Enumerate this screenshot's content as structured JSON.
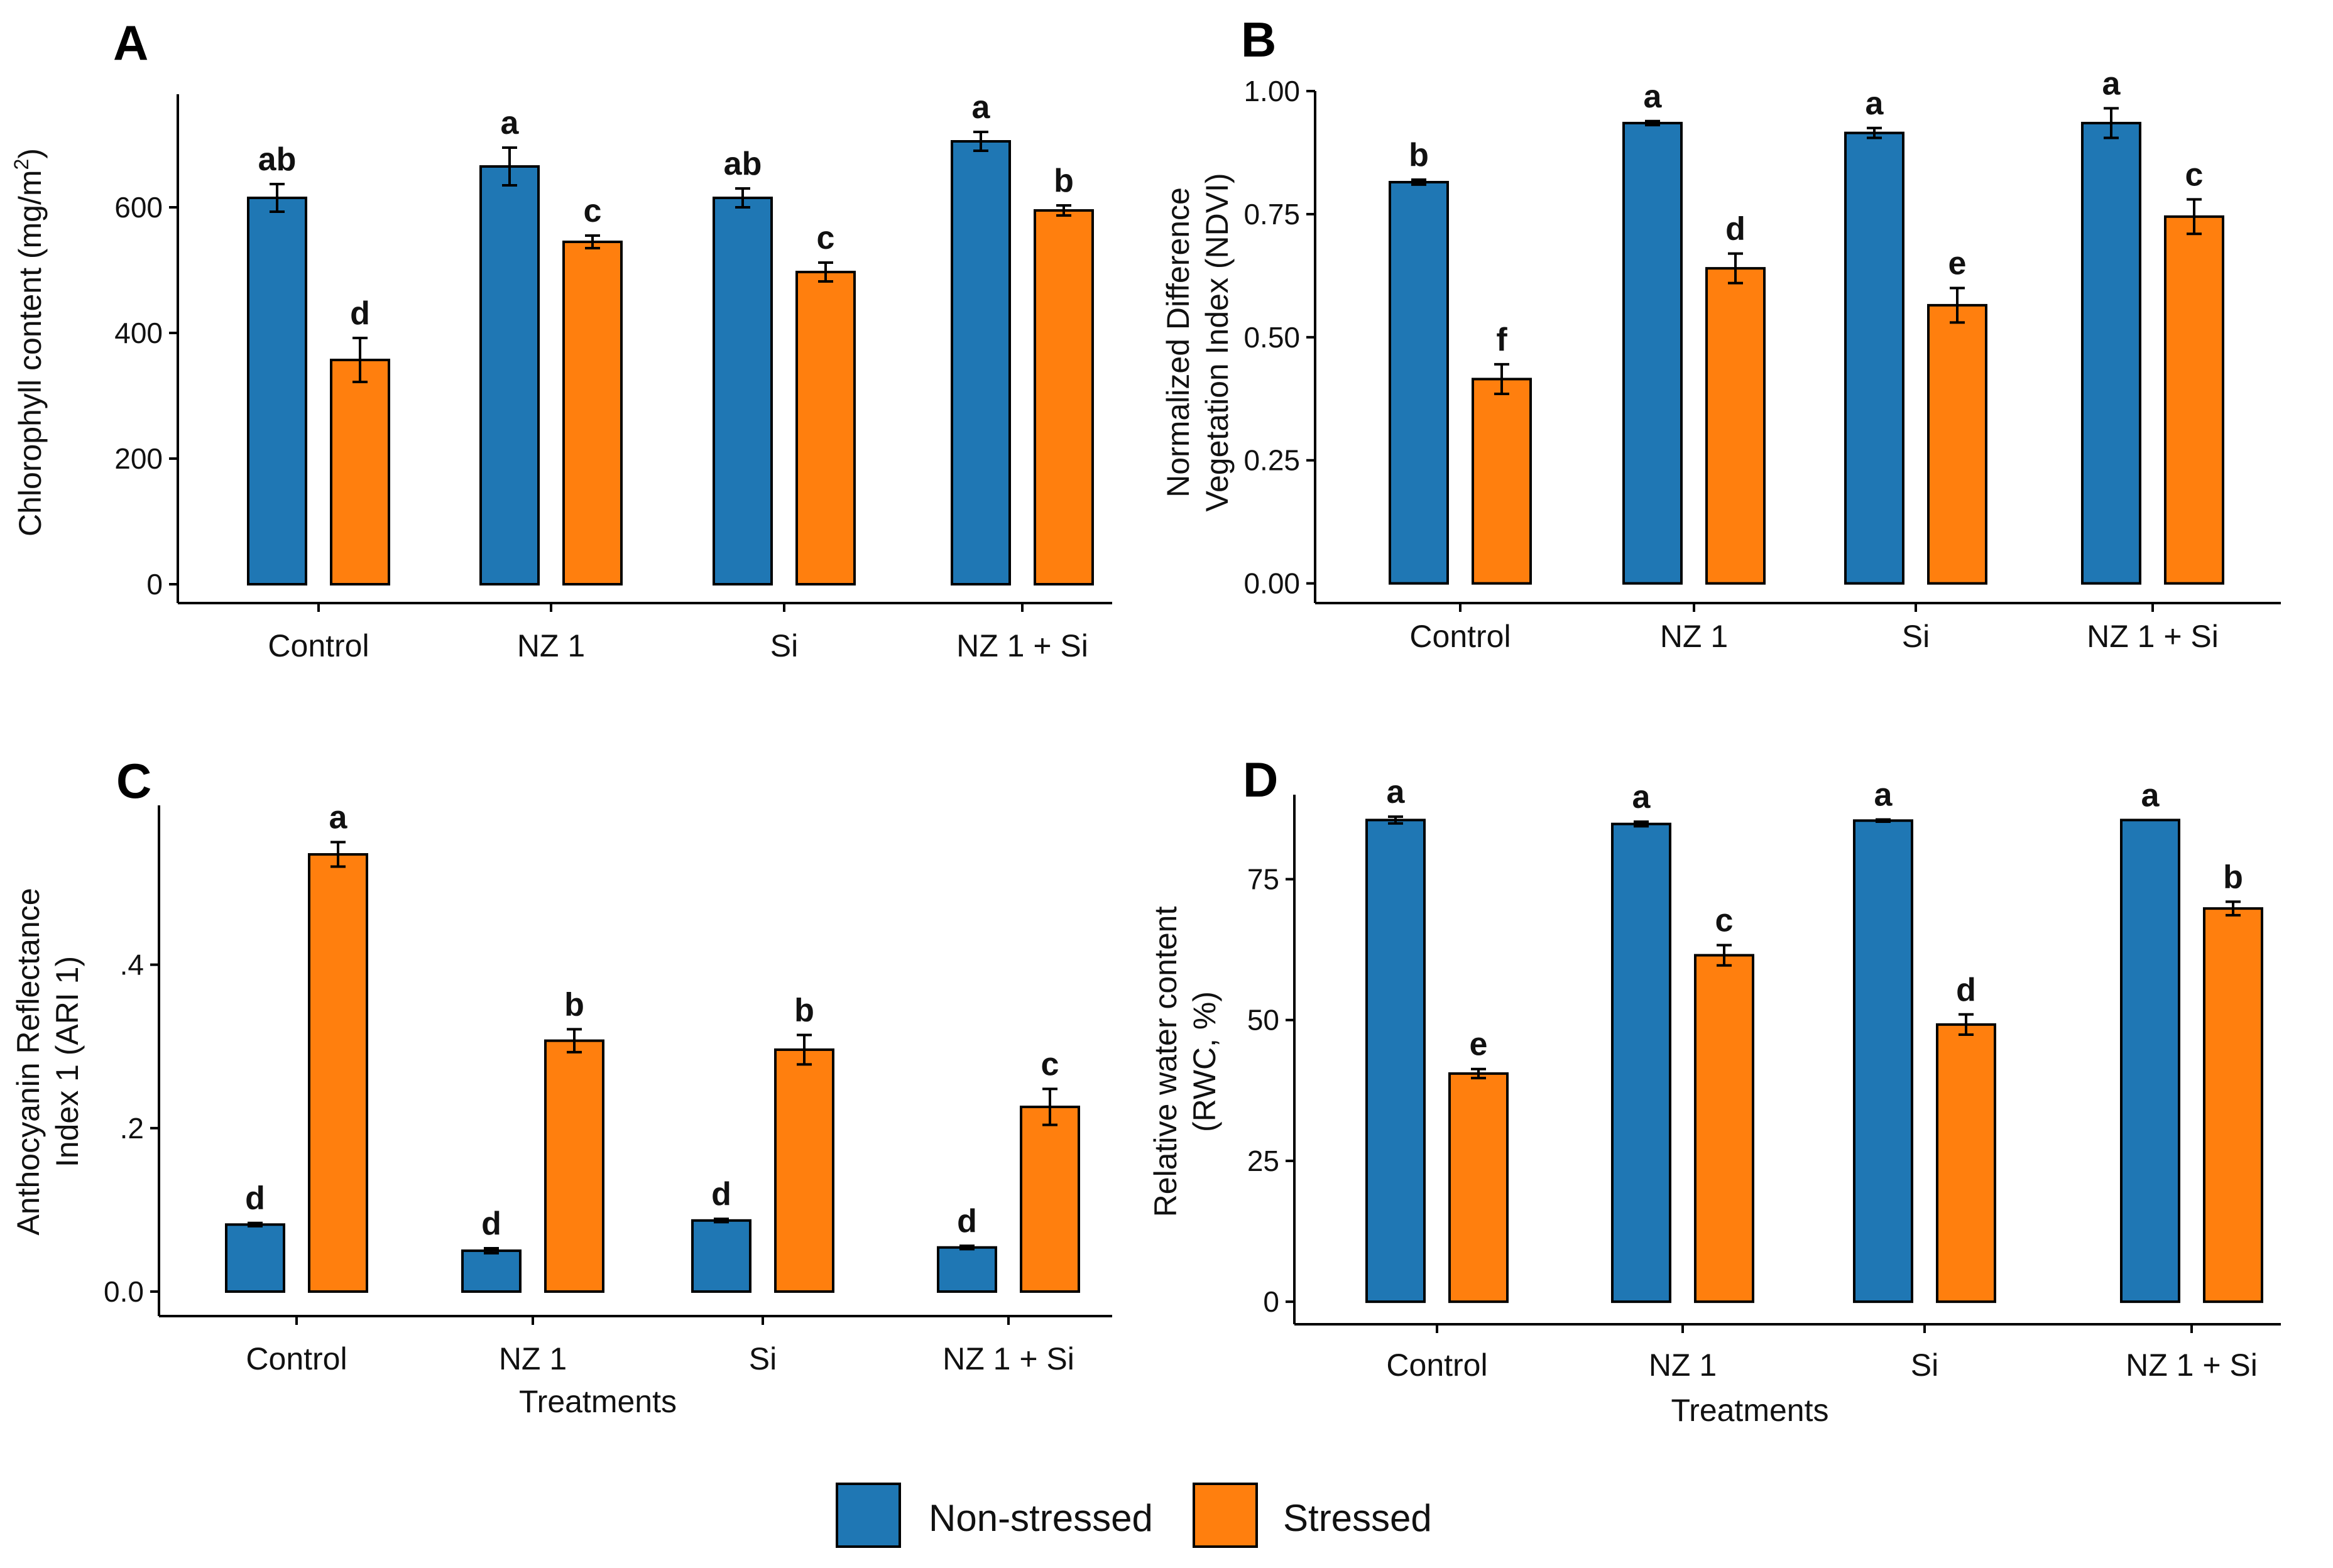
{
  "colors": {
    "non_stressed": "#1f77b4",
    "stressed": "#ff7f0e",
    "axis": "#000000"
  },
  "legend": {
    "items": [
      {
        "label": "Non-stressed",
        "color": "#1f77b4"
      },
      {
        "label": "Stressed",
        "color": "#ff7f0e"
      }
    ]
  },
  "chart_data": [
    {
      "panel": "A",
      "type": "bar",
      "xlabel": "",
      "ylabel": "Chlorophyll content (mg/m²)",
      "ylim": [
        -30,
        780
      ],
      "yticks": [
        0,
        200,
        400,
        600
      ],
      "ytick_labels": [
        "0",
        "200",
        "400",
        "600"
      ],
      "categories": [
        "Control",
        "NZ 1",
        "Si",
        "NZ 1 + Si"
      ],
      "series": [
        {
          "name": "Non-stressed",
          "values": [
            615,
            665,
            615,
            705
          ],
          "errors": [
            22,
            30,
            15,
            15
          ],
          "letters": [
            "ab",
            "a",
            "ab",
            "a"
          ]
        },
        {
          "name": "Stressed",
          "values": [
            357,
            545,
            497,
            595
          ],
          "errors": [
            35,
            10,
            15,
            8
          ],
          "letters": [
            "d",
            "c",
            "c",
            "b"
          ]
        }
      ]
    },
    {
      "panel": "B",
      "type": "bar",
      "xlabel": "",
      "ylabel": "Normalized Difference Vegetation Index (NDVI)",
      "ylabel_lines": [
        "Normalized Difference",
        "Vegetation Index (NDVI)"
      ],
      "ylim": [
        -0.04,
        1.0
      ],
      "yticks": [
        0,
        0.25,
        0.5,
        0.75,
        1.0
      ],
      "ytick_labels": [
        "0.00",
        "0.25",
        "0.50",
        "0.75",
        "1.00"
      ],
      "categories": [
        "Control",
        "NZ 1",
        "Si",
        "NZ 1 + Si"
      ],
      "series": [
        {
          "name": "Non-stressed",
          "values": [
            0.815,
            0.935,
            0.915,
            0.935
          ],
          "errors": [
            0.005,
            0.004,
            0.01,
            0.03
          ],
          "letters": [
            "b",
            "a",
            "a",
            "a"
          ]
        },
        {
          "name": "Stressed",
          "values": [
            0.415,
            0.64,
            0.565,
            0.745
          ],
          "errors": [
            0.03,
            0.03,
            0.035,
            0.035
          ],
          "letters": [
            "f",
            "d",
            "e",
            "c"
          ]
        }
      ]
    },
    {
      "panel": "C",
      "type": "bar",
      "xlabel": "Treatments",
      "ylabel": "Anthocyanin Reflectance Index 1 (ARI 1)",
      "ylabel_lines": [
        "Anthocyanin Reflectance",
        "Index 1 (ARI 1)"
      ],
      "ylim": [
        -0.03,
        0.595
      ],
      "yticks": [
        0,
        0.2,
        0.4
      ],
      "ytick_labels": [
        "0.0",
        ".2",
        ".4"
      ],
      "categories": [
        "Control",
        "NZ 1",
        "Si",
        "NZ 1 + Si"
      ],
      "series": [
        {
          "name": "Non-stressed",
          "values": [
            0.082,
            0.05,
            0.087,
            0.054
          ],
          "errors": [
            0.002,
            0.003,
            0.002,
            0.002
          ],
          "letters": [
            "d",
            "d",
            "d",
            "d"
          ]
        },
        {
          "name": "Stressed",
          "values": [
            0.535,
            0.307,
            0.296,
            0.226
          ],
          "errors": [
            0.015,
            0.014,
            0.018,
            0.022
          ],
          "letters": [
            "a",
            "b",
            "b",
            "c"
          ]
        }
      ]
    },
    {
      "panel": "D",
      "type": "bar",
      "xlabel": "Treatments",
      "ylabel": "Relative water content (RWC, %)",
      "ylabel_lines": [
        "Relative water content",
        "(RWC, %)"
      ],
      "ylim": [
        -4,
        90
      ],
      "yticks": [
        0,
        25,
        50,
        75
      ],
      "ytick_labels": [
        "0",
        "25",
        "50",
        "75"
      ],
      "categories": [
        "Control",
        "NZ 1",
        "Si",
        "NZ 1 + Si"
      ],
      "series": [
        {
          "name": "Non-stressed",
          "values": [
            85.5,
            84.8,
            85.4,
            85.5
          ],
          "errors": [
            0.6,
            0.4,
            0.2,
            0.0
          ],
          "letters": [
            "a",
            "a",
            "a",
            "a"
          ]
        },
        {
          "name": "Stressed",
          "values": [
            40.5,
            61.5,
            49.2,
            69.8
          ],
          "errors": [
            0.8,
            1.8,
            1.8,
            1.2
          ],
          "letters": [
            "e",
            "c",
            "d",
            "b"
          ]
        }
      ]
    }
  ]
}
